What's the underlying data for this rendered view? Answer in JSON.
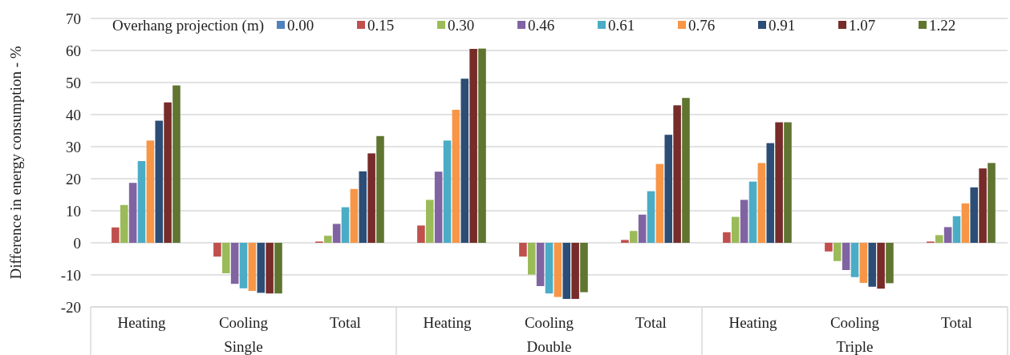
{
  "chart_data": {
    "type": "bar",
    "ylabel": "Difference in energy consumption - %",
    "legend_title": "Overhang projection (m)",
    "categories": [
      "Heating",
      "Cooling",
      "Total",
      "Heating",
      "Cooling",
      "Total",
      "Heating",
      "Cooling",
      "Total"
    ],
    "annotations": [
      "Single",
      "Double",
      "Triple"
    ],
    "series": [
      {
        "name": "0.00",
        "color": "#4f81bd",
        "values": [
          0,
          0,
          0,
          0,
          0,
          0,
          0,
          0,
          0
        ]
      },
      {
        "name": "0.15",
        "color": "#c0504d",
        "values": [
          4.8,
          -4.3,
          0.4,
          5.4,
          -4.3,
          0.9,
          3.3,
          -2.7,
          0.4
        ]
      },
      {
        "name": "0.30",
        "color": "#9bbb59",
        "values": [
          11.8,
          -9.5,
          2.2,
          13.4,
          -9.9,
          3.7,
          8.1,
          -5.7,
          2.4
        ]
      },
      {
        "name": "0.46",
        "color": "#8064a2",
        "values": [
          18.7,
          -12.8,
          5.9,
          22.2,
          -13.5,
          8.8,
          13.4,
          -8.5,
          4.9
        ]
      },
      {
        "name": "0.61",
        "color": "#4bacc6",
        "values": [
          25.5,
          -14.2,
          11.1,
          31.9,
          -15.8,
          16.1,
          19.1,
          -10.7,
          8.3
        ]
      },
      {
        "name": "0.76",
        "color": "#f79646",
        "values": [
          31.9,
          -15.0,
          16.8,
          41.5,
          -16.9,
          24.6,
          24.9,
          -12.5,
          12.3
        ]
      },
      {
        "name": "0.91",
        "color": "#2c4d75",
        "values": [
          38.1,
          -15.6,
          22.3,
          51.2,
          -17.5,
          33.7,
          31.1,
          -13.7,
          17.3
        ]
      },
      {
        "name": "1.07",
        "color": "#772c2a",
        "values": [
          43.8,
          -15.8,
          27.9,
          60.5,
          -17.5,
          42.9,
          37.6,
          -14.3,
          23.2
        ]
      },
      {
        "name": "1.22",
        "color": "#5f7530",
        "values": [
          49.1,
          -15.8,
          33.3,
          60.6,
          -15.4,
          45.2,
          37.6,
          -12.6,
          24.9
        ]
      }
    ],
    "ylim": [
      -20,
      70
    ],
    "yticks": [
      -20,
      -10,
      0,
      10,
      20,
      30,
      40,
      50,
      60,
      70
    ],
    "grid": "y",
    "legend": "top"
  }
}
